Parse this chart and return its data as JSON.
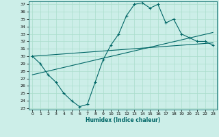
{
  "title": "",
  "xlabel": "Humidex (Indice chaleur)",
  "bg_color": "#cceee8",
  "line_color": "#006666",
  "grid_color": "#aaddcc",
  "xlim": [
    -0.5,
    23.5
  ],
  "ylim": [
    22.8,
    37.4
  ],
  "xticks": [
    0,
    1,
    2,
    3,
    4,
    5,
    6,
    7,
    8,
    9,
    10,
    11,
    12,
    13,
    14,
    15,
    16,
    17,
    18,
    19,
    20,
    21,
    22,
    23
  ],
  "yticks": [
    23,
    24,
    25,
    26,
    27,
    28,
    29,
    30,
    31,
    32,
    33,
    34,
    35,
    36,
    37
  ],
  "zigzag_x": [
    0,
    1,
    2,
    3,
    4,
    5,
    6,
    7,
    8,
    9,
    10,
    11,
    12,
    13,
    14,
    15,
    16,
    17,
    18,
    19,
    20,
    21,
    22,
    23
  ],
  "zigzag_y": [
    30,
    29,
    27.5,
    26.5,
    25,
    24,
    23.2,
    23.5,
    26.5,
    29.5,
    31.5,
    33,
    35.5,
    37,
    37.2,
    36.5,
    37,
    34.5,
    35,
    33,
    32.5,
    32,
    32,
    31.5
  ],
  "line1_x": [
    0,
    23
  ],
  "line1_y": [
    30.0,
    31.8
  ],
  "line2_x": [
    0,
    23
  ],
  "line2_y": [
    27.5,
    33.2
  ]
}
